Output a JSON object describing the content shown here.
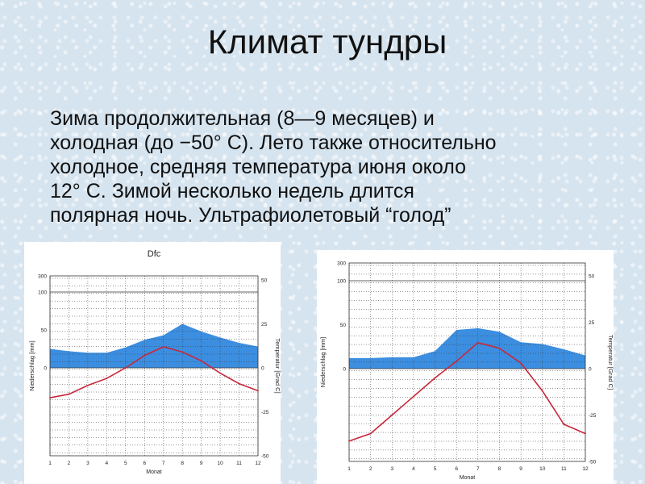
{
  "slide": {
    "title": "Климат тундры",
    "text_lines": [
      "Зима продолжительная (8—9 месяцев) и",
      "холодная (до −50° С). Лето также относительно",
      "холодное, средняя температура июня около",
      "12° С. Зимой несколько недель длится",
      "полярная ночь. Ультрафиолетовый “голод”"
    ]
  },
  "colors": {
    "precip_fill": "#3c8ee0",
    "temp_line": "#c8283a",
    "grid": "#333333"
  },
  "chart_data": [
    {
      "type": "area",
      "title": "Dfc",
      "xlabel": "Monat",
      "ylabel_left": "Niederschlag [mm]",
      "ylabel_right": "Temperatur [Grad C]",
      "x": [
        1,
        2,
        3,
        4,
        5,
        6,
        7,
        8,
        9,
        10,
        11,
        12
      ],
      "x_tick_labels": [
        "1",
        "2",
        "3",
        "4",
        "5",
        "6",
        "7",
        "8",
        "9",
        "10",
        "11",
        "12"
      ],
      "left_axis_labels": [
        "300",
        "100",
        "50",
        "0"
      ],
      "right_axis_labels": [
        "50",
        "25",
        "0",
        "-25",
        "-50"
      ],
      "series": [
        {
          "kind": "precipitation_mm",
          "values": [
            25,
            22,
            20,
            20,
            27,
            37,
            43,
            58,
            48,
            40,
            33,
            28
          ]
        },
        {
          "kind": "temperature_C",
          "values": [
            -17,
            -15,
            -10,
            -6,
            0,
            7,
            12,
            9,
            4,
            -3,
            -9,
            -13
          ]
        }
      ],
      "ylim_temperature": [
        -50,
        50
      ],
      "ylim_precip_linear": [
        0,
        100
      ],
      "grid": true
    },
    {
      "type": "area",
      "title": "",
      "xlabel": "Monat",
      "ylabel_left": "Niederschlag [mm]",
      "ylabel_right": "Temperatur [Grad C]",
      "x": [
        1,
        2,
        3,
        4,
        5,
        6,
        7,
        8,
        9,
        10,
        11,
        12
      ],
      "x_tick_labels": [
        "1",
        "2",
        "3",
        "4",
        "5",
        "6",
        "7",
        "8",
        "9",
        "10",
        "11",
        "12"
      ],
      "left_axis_labels": [
        "300",
        "100",
        "50",
        "0"
      ],
      "right_axis_labels": [
        "50",
        "25",
        "0",
        "-25",
        "-50"
      ],
      "series": [
        {
          "kind": "precipitation_mm",
          "values": [
            12,
            12,
            13,
            13,
            20,
            44,
            46,
            42,
            30,
            28,
            22,
            15
          ]
        },
        {
          "kind": "temperature_C",
          "values": [
            -39,
            -35,
            -25,
            -15,
            -5,
            4,
            14,
            11,
            3,
            -12,
            -30,
            -35
          ]
        }
      ],
      "ylim_temperature": [
        -50,
        50
      ],
      "ylim_precip_linear": [
        0,
        100
      ],
      "grid": true
    }
  ]
}
